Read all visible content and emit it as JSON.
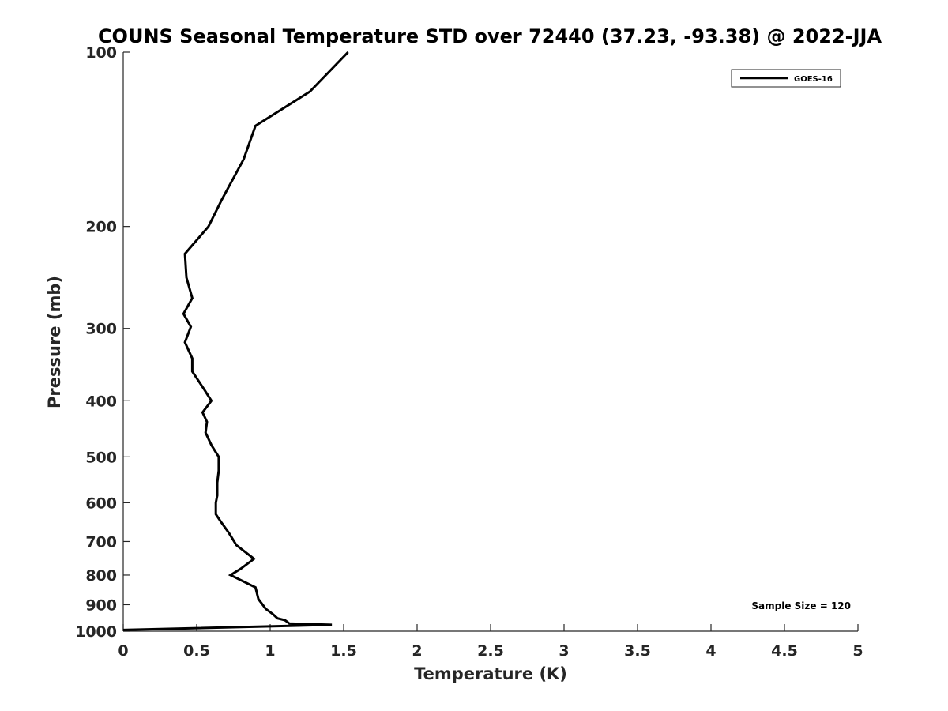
{
  "chart_data": {
    "type": "line",
    "title": "COUNS Seasonal Temperature STD over 72440 (37.23, -93.38) @ 2022-JJA",
    "xlabel": "Temperature (K)",
    "ylabel": "Pressure (mb)",
    "xlim": [
      0,
      5
    ],
    "ylim": [
      100,
      1000
    ],
    "y_scale": "log",
    "y_reversed": true,
    "x_ticks": [
      "0",
      "0.5",
      "1",
      "1.5",
      "2",
      "2.5",
      "3",
      "3.5",
      "4",
      "4.5",
      "5"
    ],
    "y_ticks": [
      "100",
      "200",
      "300",
      "400",
      "500",
      "600",
      "700",
      "800",
      "900",
      "1000"
    ],
    "grid": false,
    "legend_position": "top-right",
    "annotation": "Sample Size = 120",
    "series": [
      {
        "name": "GOES-16",
        "color": "#000000",
        "x": [
          1.53,
          1.27,
          0.9,
          0.82,
          0.67,
          0.58,
          0.42,
          0.43,
          0.47,
          0.41,
          0.46,
          0.42,
          0.47,
          0.47,
          0.55,
          0.6,
          0.54,
          0.57,
          0.56,
          0.6,
          0.65,
          0.65,
          0.64,
          0.64,
          0.63,
          0.63,
          0.67,
          0.72,
          0.77,
          0.89,
          0.8,
          0.73,
          0.9,
          0.92,
          0.97,
          1.02,
          1.05,
          1.1,
          1.12,
          1.13,
          1.42,
          0.0
        ],
        "y": [
          100,
          117,
          134,
          153,
          180,
          200,
          223,
          245,
          266,
          283,
          298,
          317,
          338,
          356,
          382,
          400,
          419,
          435,
          454,
          477,
          500,
          528,
          554,
          583,
          600,
          628,
          650,
          677,
          710,
          750,
          780,
          800,
          840,
          880,
          915,
          935,
          950,
          957,
          965,
          970,
          975,
          995
        ]
      }
    ]
  }
}
